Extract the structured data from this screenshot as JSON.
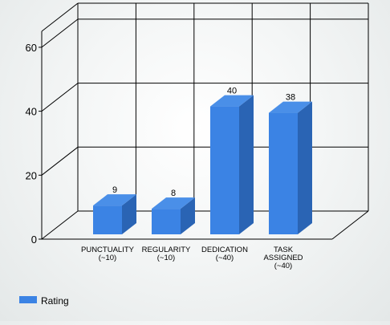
{
  "chart_data": {
    "type": "bar",
    "categories": [
      [
        "PUNCTUALITY",
        "(~10)"
      ],
      [
        "REGULARITY",
        "(~10)"
      ],
      [
        "DEDICATION",
        "(~40)"
      ],
      [
        "TASK",
        "ASSIGNED",
        "(~40)"
      ]
    ],
    "series": [
      {
        "name": "Rating",
        "values": [
          9,
          8,
          40,
          38
        ],
        "color": "#3b83e4"
      }
    ],
    "data_labels": [
      "9",
      "8",
      "40",
      "38"
    ],
    "yticks": [
      "0",
      "20",
      "40",
      "60"
    ],
    "ylim": [
      0,
      65
    ],
    "grid": true,
    "three_d": true,
    "legend": {
      "position": "bottom-left"
    },
    "colors": {
      "bar_front": "#3b83e4",
      "bar_side": "#2a64b4",
      "bar_top": "#4a8fe8",
      "grid": "#000000"
    }
  }
}
